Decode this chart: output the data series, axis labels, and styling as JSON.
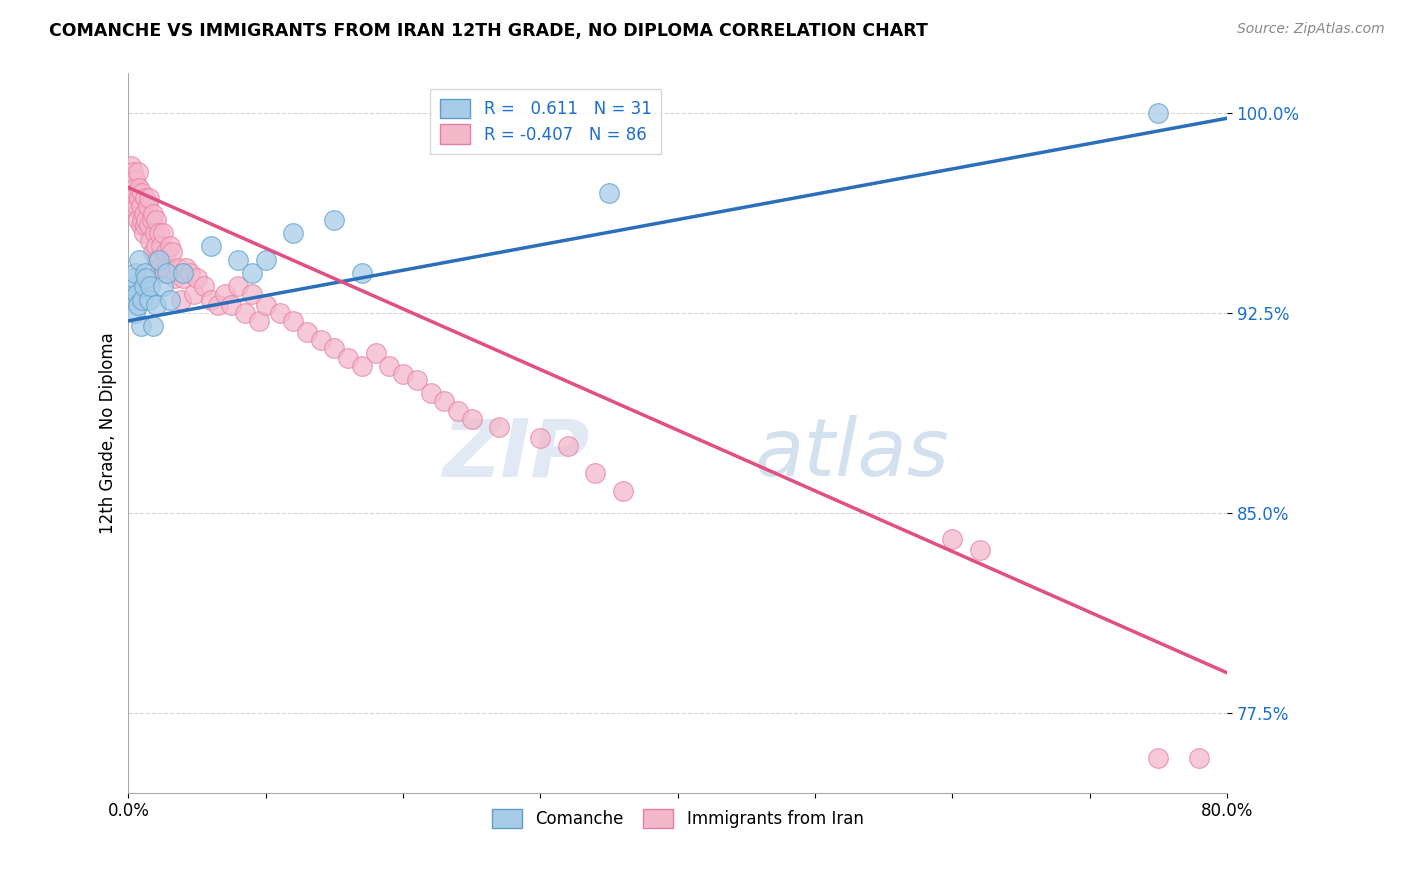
{
  "title": "COMANCHE VS IMMIGRANTS FROM IRAN 12TH GRADE, NO DIPLOMA CORRELATION CHART",
  "source": "Source: ZipAtlas.com",
  "ylabel": "12th Grade, No Diploma",
  "xlim": [
    0.0,
    0.8
  ],
  "ylim": [
    0.745,
    1.015
  ],
  "yticks": [
    0.775,
    0.85,
    0.925,
    1.0
  ],
  "ytick_labels": [
    "77.5%",
    "85.0%",
    "92.5%",
    "100.0%"
  ],
  "xticks": [
    0.0,
    0.1,
    0.2,
    0.3,
    0.4,
    0.5,
    0.6,
    0.7,
    0.8
  ],
  "xtick_labels": [
    "0.0%",
    "",
    "",
    "",
    "",
    "",
    "",
    "",
    "80.0%"
  ],
  "blue_R": 0.611,
  "blue_N": 31,
  "pink_R": -0.407,
  "pink_N": 86,
  "blue_color": "#a8cce8",
  "pink_color": "#f4b8cb",
  "blue_edge_color": "#5a9ec9",
  "pink_edge_color": "#e87da0",
  "blue_line_color": "#2b6fba",
  "pink_line_color": "#e05080",
  "watermark_zip": "ZIP",
  "watermark_atlas": "atlas",
  "legend_blue_label": "Comanche",
  "legend_pink_label": "Immigrants from Iran",
  "blue_scatter_x": [
    0.002,
    0.003,
    0.004,
    0.005,
    0.005,
    0.006,
    0.007,
    0.008,
    0.009,
    0.01,
    0.011,
    0.012,
    0.013,
    0.015,
    0.016,
    0.018,
    0.02,
    0.022,
    0.025,
    0.028,
    0.03,
    0.04,
    0.06,
    0.08,
    0.09,
    0.1,
    0.12,
    0.15,
    0.17,
    0.35,
    0.75
  ],
  "blue_scatter_y": [
    0.93,
    0.935,
    0.938,
    0.94,
    0.925,
    0.932,
    0.928,
    0.945,
    0.92,
    0.93,
    0.935,
    0.94,
    0.938,
    0.93,
    0.935,
    0.92,
    0.928,
    0.945,
    0.935,
    0.94,
    0.93,
    0.94,
    0.95,
    0.945,
    0.94,
    0.945,
    0.955,
    0.96,
    0.94,
    0.97,
    1.0
  ],
  "pink_scatter_x": [
    0.001,
    0.002,
    0.002,
    0.003,
    0.003,
    0.004,
    0.004,
    0.005,
    0.005,
    0.006,
    0.006,
    0.007,
    0.007,
    0.008,
    0.008,
    0.009,
    0.009,
    0.01,
    0.01,
    0.011,
    0.011,
    0.012,
    0.012,
    0.013,
    0.014,
    0.015,
    0.015,
    0.016,
    0.017,
    0.018,
    0.018,
    0.019,
    0.02,
    0.02,
    0.021,
    0.022,
    0.023,
    0.024,
    0.025,
    0.026,
    0.027,
    0.028,
    0.03,
    0.032,
    0.034,
    0.036,
    0.038,
    0.04,
    0.042,
    0.045,
    0.048,
    0.05,
    0.055,
    0.06,
    0.065,
    0.07,
    0.075,
    0.08,
    0.085,
    0.09,
    0.095,
    0.1,
    0.11,
    0.12,
    0.13,
    0.14,
    0.15,
    0.16,
    0.17,
    0.18,
    0.19,
    0.2,
    0.21,
    0.22,
    0.23,
    0.24,
    0.25,
    0.27,
    0.3,
    0.32,
    0.34,
    0.36,
    0.6,
    0.62,
    0.75,
    0.78
  ],
  "pink_scatter_y": [
    0.97,
    0.975,
    0.98,
    0.965,
    0.978,
    0.97,
    0.968,
    0.975,
    0.972,
    0.965,
    0.97,
    0.978,
    0.96,
    0.968,
    0.972,
    0.958,
    0.965,
    0.97,
    0.96,
    0.955,
    0.962,
    0.958,
    0.968,
    0.96,
    0.965,
    0.958,
    0.968,
    0.952,
    0.96,
    0.962,
    0.948,
    0.955,
    0.96,
    0.95,
    0.945,
    0.955,
    0.942,
    0.95,
    0.955,
    0.94,
    0.948,
    0.942,
    0.95,
    0.948,
    0.938,
    0.942,
    0.93,
    0.938,
    0.942,
    0.94,
    0.932,
    0.938,
    0.935,
    0.93,
    0.928,
    0.932,
    0.928,
    0.935,
    0.925,
    0.932,
    0.922,
    0.928,
    0.925,
    0.922,
    0.918,
    0.915,
    0.912,
    0.908,
    0.905,
    0.91,
    0.905,
    0.902,
    0.9,
    0.895,
    0.892,
    0.888,
    0.885,
    0.882,
    0.878,
    0.875,
    0.865,
    0.858,
    0.84,
    0.836,
    0.758,
    0.758
  ],
  "blue_trend_x": [
    0.0,
    0.8
  ],
  "blue_trend_y": [
    0.922,
    0.998
  ],
  "pink_trend_x": [
    0.0,
    0.8
  ],
  "pink_trend_y": [
    0.972,
    0.79
  ]
}
